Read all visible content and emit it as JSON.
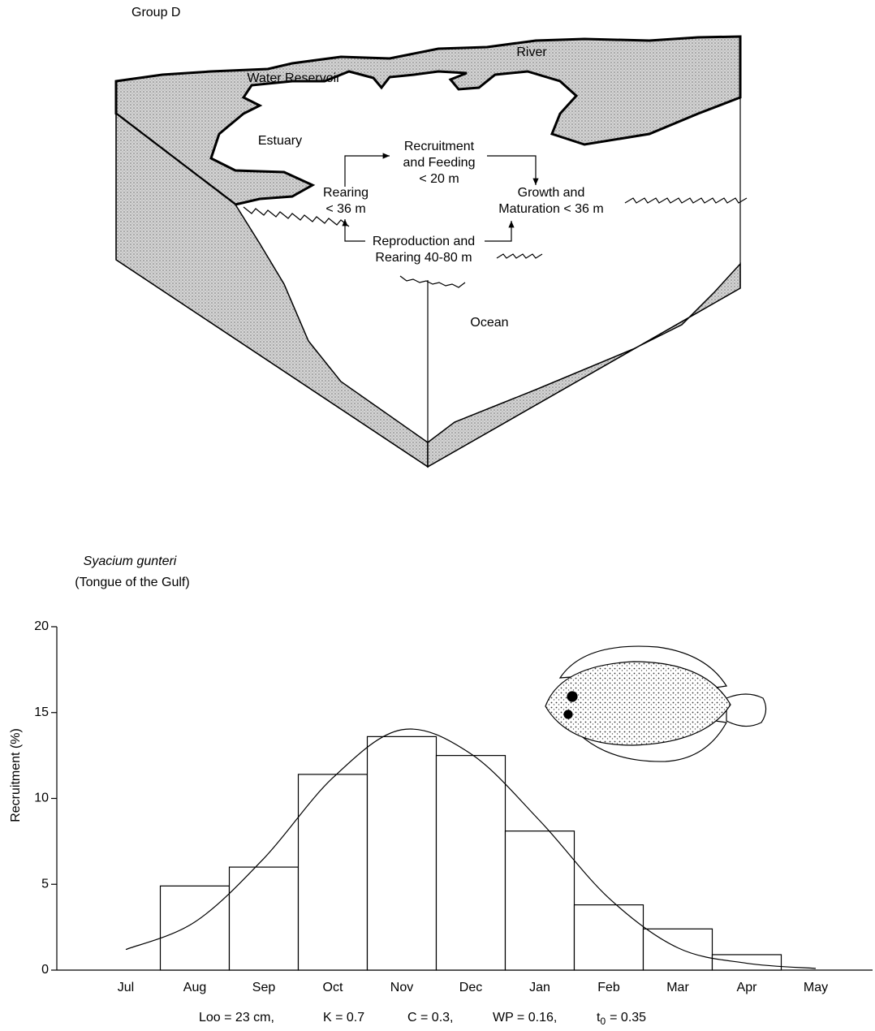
{
  "diagram": {
    "group": "Group D",
    "labels": {
      "river": "River",
      "reservoir": "Water Reservoir",
      "estuary": "Estuary",
      "ocean": "Ocean"
    },
    "stages": [
      {
        "lines": [
          "Recruitment",
          "and Feeding",
          "< 20 m"
        ]
      },
      {
        "lines": [
          "Rearing",
          "< 36 m"
        ]
      },
      {
        "lines": [
          "Growth and",
          "Maturation  < 36 m"
        ]
      },
      {
        "lines": [
          "Reproduction and",
          "Rearing  40-80 m"
        ]
      }
    ]
  },
  "chart_data": {
    "type": "bar",
    "title": "Syacium gunteri",
    "subtitle": "(Tongue of the Gulf)",
    "y_label": "Recruitment (%)",
    "categories": [
      "Jul",
      "Aug",
      "Sep",
      "Oct",
      "Nov",
      "Dec",
      "Jan",
      "Feb",
      "Mar",
      "Apr",
      "May"
    ],
    "values": [
      0,
      4.9,
      6.0,
      11.4,
      13.6,
      12.5,
      8.1,
      3.8,
      2.4,
      0.9,
      0
    ],
    "color": "#ffffff",
    "edge_color": "#000000",
    "curve_values": [
      1.2,
      2.8,
      6.5,
      11.2,
      14.0,
      12.6,
      8.7,
      4.2,
      1.3,
      0.4,
      0.1
    ],
    "curve_color": "#000000",
    "ylim": [
      0,
      20
    ],
    "yticks": [
      0,
      5,
      10,
      15,
      20
    ],
    "grid": false,
    "footnote": [
      "Loo = 23 cm,",
      "K = 0.7",
      "C = 0.3,",
      "WP = 0.16,"
    ],
    "t0_label": [
      "t",
      "0",
      "= 0.35"
    ]
  }
}
